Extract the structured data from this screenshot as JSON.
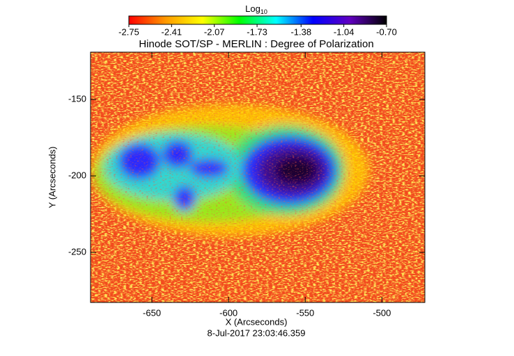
{
  "chart_data": {
    "type": "heatmap",
    "title": "Hinode SOT/SP - MERLIN : Degree of Polarization",
    "xlabel": "X (Arcseconds)",
    "ylabel": "Y (Arcseconds)",
    "timestamp": "8-Jul-2017 23:03:46.359",
    "xlim": [
      -690,
      -472
    ],
    "xticks": [
      -650,
      -600,
      -550,
      -500
    ],
    "ylim": [
      -282.7,
      -119.1
    ],
    "yticks": [
      -250,
      -200,
      -150
    ],
    "colorbar": {
      "label": "Log",
      "label_subscript": "10",
      "range": [
        -2.75,
        -0.7
      ],
      "ticks": [
        -2.75,
        -2.41,
        -2.07,
        -1.73,
        -1.38,
        -1.04,
        {
          "value": -0.7,
          "label": "-0.70"
        }
      ],
      "colors": [
        "#ff0000",
        "#ff9900",
        "#ffff00",
        "#00ff00",
        "#00ffff",
        "#0000ff",
        "#6000c0",
        "#000000"
      ]
    }
  }
}
